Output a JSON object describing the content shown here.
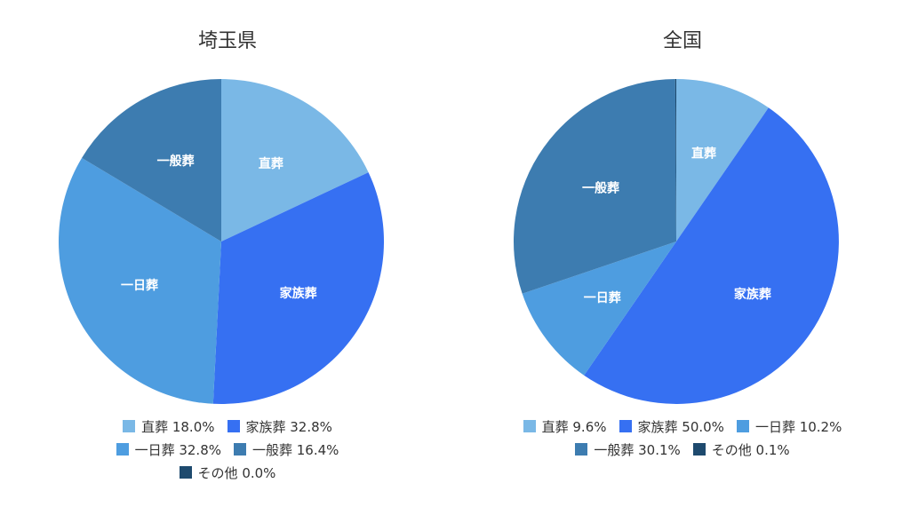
{
  "colors": {
    "直葬": "#7ab8e6",
    "家族葬": "#3670f2",
    "一日葬": "#4e9de0",
    "一般葬": "#3d7cb0",
    "その他": "#1e4a6e"
  },
  "chart_data": [
    {
      "type": "pie",
      "title": "埼玉県",
      "slices": [
        {
          "label": "直葬",
          "value": 18.0,
          "legend": "直葬 18.0%"
        },
        {
          "label": "家族葬",
          "value": 32.8,
          "legend": "家族葬 32.8%"
        },
        {
          "label": "一日葬",
          "value": 32.8,
          "legend": "一日葬 32.8%"
        },
        {
          "label": "一般葬",
          "value": 16.4,
          "legend": "一般葬 16.4%"
        },
        {
          "label": "その他",
          "value": 0.0,
          "legend": "その他 0.0%"
        }
      ],
      "legend_rows": [
        [
          0,
          1
        ],
        [
          2,
          3
        ],
        [
          4
        ]
      ]
    },
    {
      "type": "pie",
      "title": "全国",
      "slices": [
        {
          "label": "直葬",
          "value": 9.6,
          "legend": "直葬 9.6%"
        },
        {
          "label": "家族葬",
          "value": 50.0,
          "legend": "家族葬 50.0%"
        },
        {
          "label": "一日葬",
          "value": 10.2,
          "legend": "一日葬 10.2%"
        },
        {
          "label": "一般葬",
          "value": 30.1,
          "legend": "一般葬 30.1%"
        },
        {
          "label": "その他",
          "value": 0.1,
          "legend": "その他 0.1%"
        }
      ],
      "legend_rows": [
        [
          0,
          1,
          2
        ],
        [
          3,
          4
        ]
      ]
    }
  ]
}
